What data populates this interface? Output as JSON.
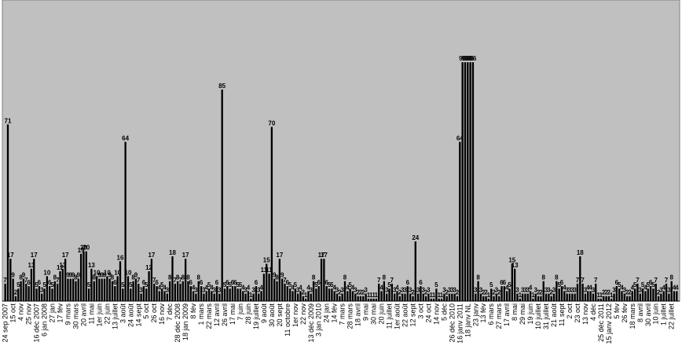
{
  "chart_data": {
    "type": "bar",
    "color": "#000000",
    "categories": [
      "24 sep 2007",
      null,
      null,
      "15 oct",
      null,
      null,
      "4 nov",
      null,
      null,
      "25 nov",
      null,
      null,
      "16 déc 2007",
      null,
      null,
      "6 jan 2008",
      null,
      null,
      "27 jan",
      null,
      null,
      "17 fév",
      null,
      null,
      "9 mars",
      null,
      null,
      "30 mars",
      null,
      null,
      "20 avril",
      null,
      null,
      "11 mai",
      null,
      null,
      "1er juin",
      null,
      null,
      "22 juin",
      null,
      null,
      "13 juillet",
      null,
      null,
      "3 août",
      null,
      null,
      "24 août",
      null,
      null,
      "14 sept",
      null,
      null,
      "5 oct",
      null,
      null,
      "26 oct",
      null,
      null,
      "16 nov",
      null,
      null,
      "7 déc",
      null,
      null,
      "28 déc 2008",
      null,
      null,
      "18 jan 2009",
      null,
      null,
      "8 fév",
      null,
      null,
      "1 mars",
      null,
      null,
      "22 mars",
      null,
      null,
      "12 avril",
      null,
      null,
      "26 avril",
      null,
      null,
      "17 mai",
      null,
      null,
      "7 juin",
      null,
      null,
      "28 juin",
      null,
      null,
      "19 juillet",
      null,
      null,
      "9 août",
      null,
      null,
      "30 août",
      null,
      null,
      "20 sept",
      null,
      null,
      "11 octobre",
      null,
      null,
      "1er nov",
      null,
      null,
      "22 nov",
      null,
      null,
      "13 déc 2009",
      null,
      null,
      "3 jan 2010",
      null,
      null,
      "24 jan",
      null,
      null,
      "14 fév",
      null,
      null,
      "7 mars",
      null,
      null,
      "28 mars",
      null,
      null,
      "18 avril",
      null,
      null,
      "9 mai",
      null,
      null,
      "30 mai",
      null,
      null,
      "20 juin",
      null,
      null,
      "11 juillet",
      null,
      null,
      "1er août",
      null,
      null,
      "22 août",
      null,
      null,
      "12 sept",
      null,
      null,
      "3 oct",
      null,
      null,
      "24 oct",
      null,
      null,
      "14 nov",
      null,
      null,
      "5 déc",
      null,
      null,
      "26 déc 2010",
      null,
      null,
      "16 janv 2011",
      null,
      null,
      "18 janv NL",
      null,
      null,
      "23 janv",
      null,
      null,
      "13 fév",
      null,
      null,
      "6 mars",
      null,
      null,
      "27 mars",
      null,
      null,
      "17 avril",
      null,
      null,
      "8 mai",
      null,
      null,
      "29 mai",
      null,
      null,
      "19 juin",
      null,
      null,
      "10 juillet",
      null,
      null,
      "31 juillet",
      null,
      null,
      "21 août",
      null,
      null,
      "11 sept",
      null,
      null,
      "2 oct",
      null,
      null,
      "23 oct",
      null,
      null,
      "13 nov",
      null,
      null,
      "4 déc",
      null,
      null,
      "25 déc 2011",
      null,
      null,
      "15 janv 2012",
      null,
      null,
      "5 fév",
      null,
      null,
      "26 fév",
      null,
      null,
      "18 mars",
      null,
      null,
      "8 avril",
      null,
      null,
      "30 avril",
      null,
      null,
      "10 juin",
      null,
      null,
      "1 juillet",
      null,
      null,
      "22 juillet",
      null,
      null
    ],
    "values": [
      7,
      71,
      17,
      9,
      2,
      5,
      8,
      9,
      7,
      6,
      13,
      17,
      5,
      6,
      3,
      5,
      10,
      6,
      5,
      8,
      7,
      12,
      13,
      17,
      9,
      9,
      9,
      8,
      9,
      19,
      20,
      20,
      5,
      13,
      8,
      10,
      9,
      9,
      9,
      10,
      9,
      8,
      6,
      10,
      16,
      5,
      64,
      10,
      5,
      8,
      9,
      7,
      3,
      6,
      5,
      12,
      17,
      7,
      6,
      4,
      5,
      4,
      3,
      8,
      18,
      7,
      8,
      7,
      8,
      17,
      8,
      6,
      4,
      3,
      8,
      6,
      3,
      4,
      5,
      4,
      3,
      6,
      3,
      85,
      5,
      6,
      5,
      6,
      6,
      5,
      5,
      4,
      3,
      4,
      1,
      3,
      6,
      3,
      4,
      11,
      15,
      11,
      70,
      9,
      8,
      17,
      9,
      7,
      6,
      5,
      4,
      5,
      3,
      4,
      2,
      1,
      4,
      3,
      8,
      5,
      6,
      17,
      17,
      6,
      5,
      5,
      4,
      3,
      2,
      3,
      8,
      4,
      5,
      4,
      3,
      2,
      2,
      2,
      3,
      1,
      1,
      1,
      1,
      7,
      4,
      8,
      3,
      5,
      7,
      3,
      4,
      2,
      3,
      3,
      6,
      3,
      2,
      24,
      3,
      6,
      3,
      2,
      3,
      1,
      1,
      5,
      1,
      1,
      3,
      2,
      3,
      3,
      3,
      2,
      64,
      96,
      96,
      96,
      96,
      96,
      3,
      8,
      3,
      2,
      2,
      1,
      5,
      2,
      3,
      2,
      6,
      6,
      4,
      5,
      15,
      13,
      3,
      1,
      3,
      3,
      3,
      4,
      1,
      3,
      2,
      2,
      8,
      3,
      3,
      2,
      3,
      8,
      5,
      6,
      4,
      3,
      3,
      3,
      3,
      7,
      18,
      7,
      3,
      4,
      4,
      3,
      7,
      1,
      1,
      2,
      2,
      2,
      1,
      3,
      6,
      5,
      4,
      3,
      2,
      2,
      4,
      5,
      7,
      3,
      5,
      4,
      5,
      6,
      5,
      7,
      2,
      3,
      4,
      7,
      3,
      8,
      4,
      4
    ],
    "ylim": [
      0,
      121
    ]
  }
}
